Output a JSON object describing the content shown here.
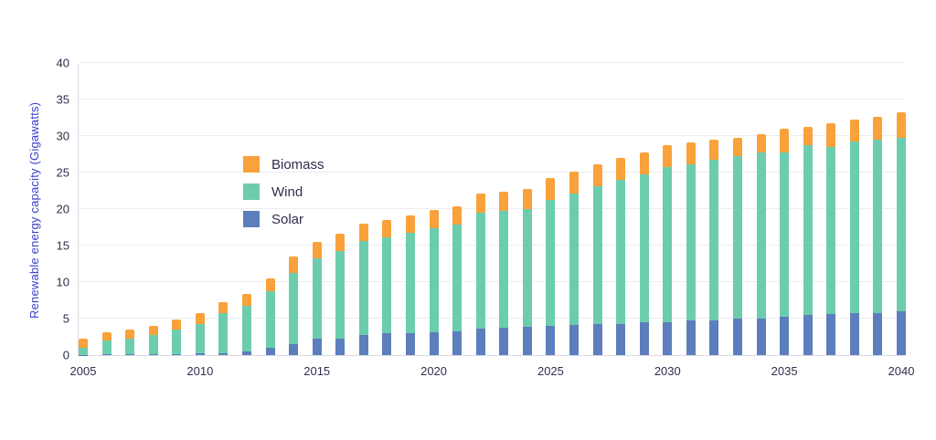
{
  "chart_data": {
    "type": "bar",
    "stacked": true,
    "title": "",
    "xlabel": "",
    "ylabel": "Renewable energy capacity (Gigawatts)",
    "ylim": [
      0,
      40
    ],
    "yticks": [
      0,
      5,
      10,
      15,
      20,
      25,
      30,
      35,
      40
    ],
    "xticks": [
      2005,
      2010,
      2015,
      2020,
      2025,
      2030,
      2035,
      2040
    ],
    "grid": true,
    "legend_position": "top-left-inside",
    "x": [
      2005,
      2006,
      2007,
      2008,
      2009,
      2010,
      2011,
      2012,
      2013,
      2014,
      2015,
      2016,
      2017,
      2018,
      2019,
      2020,
      2021,
      2022,
      2023,
      2024,
      2025,
      2026,
      2027,
      2028,
      2029,
      2030,
      2031,
      2032,
      2033,
      2034,
      2035,
      2036,
      2037,
      2038,
      2039,
      2040
    ],
    "series": [
      {
        "name": "Solar",
        "color": "#5C7EBC",
        "values": [
          0.05,
          0.1,
          0.1,
          0.1,
          0.15,
          0.2,
          0.3,
          0.5,
          1.0,
          1.5,
          2.2,
          2.3,
          2.8,
          3.0,
          3.0,
          3.1,
          3.3,
          3.6,
          3.7,
          3.9,
          4.0,
          4.1,
          4.2,
          4.3,
          4.5,
          4.5,
          4.7,
          4.8,
          5.0,
          5.0,
          5.2,
          5.5,
          5.6,
          5.7,
          5.8,
          6.0
        ]
      },
      {
        "name": "Wind",
        "color": "#6CCDAE",
        "values": [
          1.0,
          1.9,
          2.2,
          2.6,
          3.3,
          4.1,
          5.4,
          6.3,
          7.8,
          9.8,
          11.1,
          12.0,
          12.8,
          13.1,
          13.7,
          14.3,
          14.6,
          15.9,
          16.0,
          16.1,
          17.2,
          18.0,
          18.9,
          19.7,
          20.2,
          21.2,
          21.4,
          21.9,
          22.2,
          22.8,
          22.6,
          23.3,
          22.9,
          23.5,
          23.7,
          23.8
        ]
      },
      {
        "name": "Biomass",
        "color": "#F9A13A",
        "values": [
          1.2,
          1.1,
          1.2,
          1.3,
          1.4,
          1.5,
          1.5,
          1.6,
          1.7,
          2.2,
          2.2,
          2.3,
          2.4,
          2.4,
          2.4,
          2.5,
          2.5,
          2.6,
          2.7,
          2.8,
          3.0,
          3.0,
          3.0,
          3.0,
          3.0,
          3.1,
          3.0,
          2.8,
          2.6,
          2.5,
          3.2,
          2.4,
          3.2,
          3.1,
          3.1,
          3.4
        ]
      }
    ]
  },
  "legend": {
    "items": [
      {
        "label": "Biomass",
        "color": "#F9A13A"
      },
      {
        "label": "Wind",
        "color": "#6CCDAE"
      },
      {
        "label": "Solar",
        "color": "#5C7EBC"
      }
    ]
  }
}
